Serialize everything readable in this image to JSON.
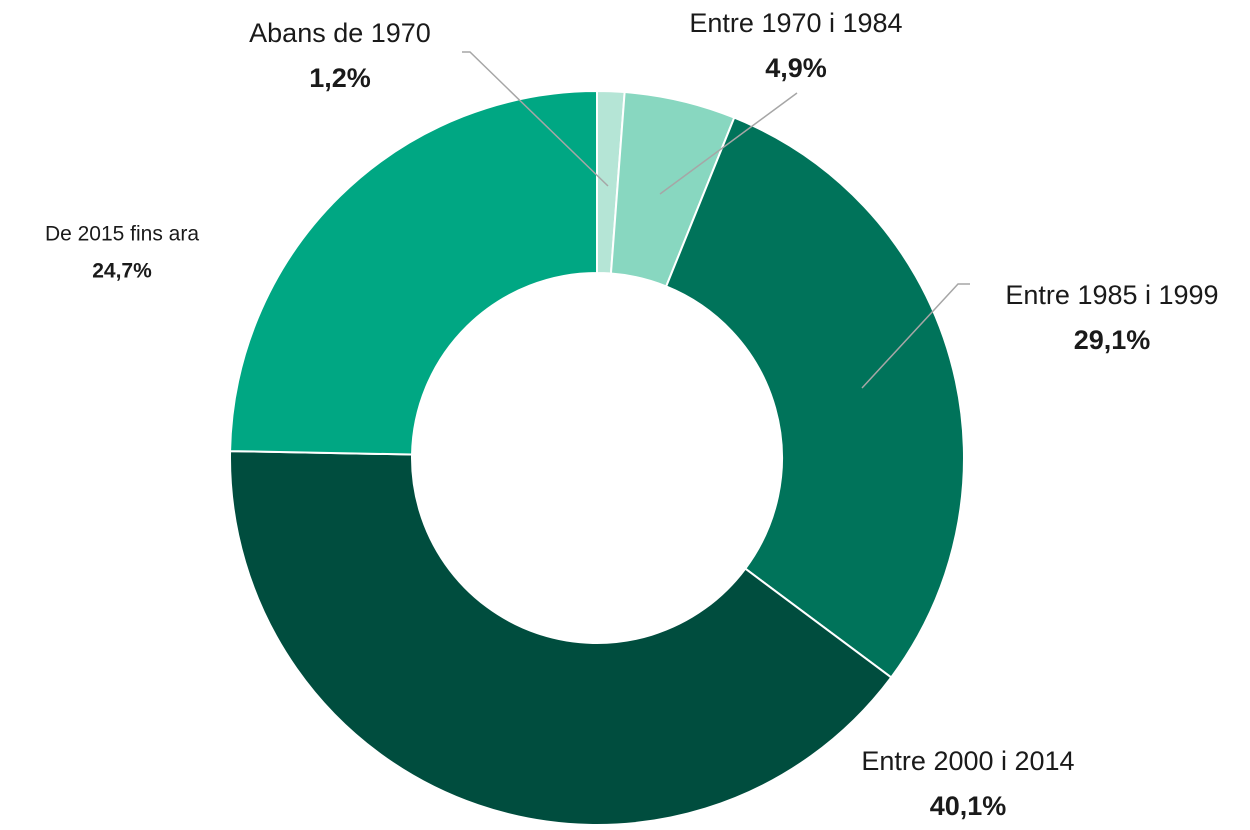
{
  "chart_data": {
    "type": "donut",
    "categories": [
      "Abans de 1970",
      "Entre 1970 i 1984",
      "Entre 1985 i 1999",
      "Entre 2000 i 2014",
      "De 2015 fins ara"
    ],
    "values": [
      1.2,
      4.9,
      29.1,
      40.1,
      24.7
    ],
    "value_labels": [
      "1,2%",
      "4,9%",
      "29,1%",
      "40,1%",
      "24,7%"
    ],
    "colors": [
      "#b5e5d6",
      "#88d7c0",
      "#00735a",
      "#004d3e",
      "#00a783"
    ]
  }
}
